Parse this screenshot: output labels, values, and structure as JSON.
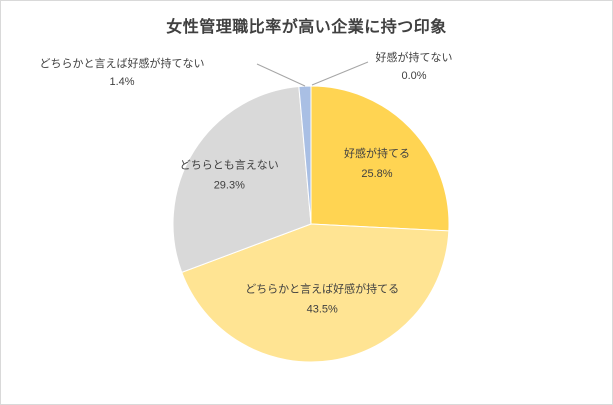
{
  "page": {
    "background_color": "#FFFFFF",
    "frame_border_color": "#D9D9D9"
  },
  "chart_data": {
    "type": "pie",
    "title": "女性管理職比率が高い企業に持つ印象",
    "direction": "clockwise",
    "start_angle_deg": 0,
    "total": 100,
    "legend": "none",
    "text_color": "#404040",
    "leader_line_color": "#A6A6A6",
    "slices": [
      {
        "label": "好感が持てる",
        "value": 25.8,
        "pct_label": "25.8%",
        "color": "#FFD452",
        "label_position": "inside"
      },
      {
        "label": "どちらかと言えば好感が持てる",
        "value": 43.5,
        "pct_label": "43.5%",
        "color": "#FFE493",
        "label_position": "inside"
      },
      {
        "label": "どちらとも言えない",
        "value": 29.3,
        "pct_label": "29.3%",
        "color": "#D9D9D9",
        "label_position": "inside"
      },
      {
        "label": "どちらかと言えば好感が持てない",
        "value": 1.4,
        "pct_label": "1.4%",
        "color": "#A9BFE4",
        "label_position": "outside-left"
      },
      {
        "label": "好感が持てない",
        "value": 0.0,
        "pct_label": "0.0%",
        "color": null,
        "label_position": "outside-right"
      }
    ]
  }
}
